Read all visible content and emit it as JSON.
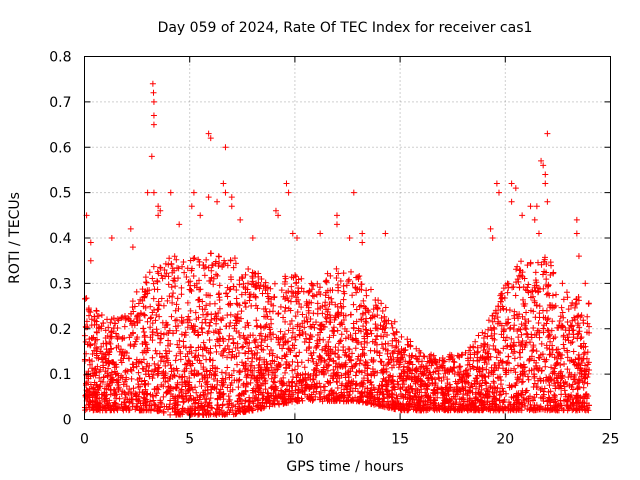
{
  "chart_data": {
    "type": "scatter",
    "title": "Day 059 of 2024, Rate Of TEC Index for receiver cas1",
    "xlabel": "GPS time / hours",
    "ylabel": "ROTI / TECUs",
    "xlim": [
      0,
      25
    ],
    "ylim": [
      0,
      0.8
    ],
    "x_ticks": [
      0,
      5,
      10,
      15,
      20,
      25
    ],
    "x_tick_labels": [
      "0",
      "5",
      "10",
      "15",
      "20",
      "25"
    ],
    "y_ticks": [
      0,
      0.1,
      0.2,
      0.3,
      0.4,
      0.5,
      0.6,
      0.7,
      0.8
    ],
    "y_tick_labels": [
      "0",
      "0.1",
      "0.2",
      "0.3",
      "0.4",
      "0.5",
      "0.6",
      "0.7",
      "0.8"
    ],
    "grid": true,
    "marker": "+",
    "color": "#ff0000",
    "envelope": {
      "x": [
        0,
        1,
        2,
        3,
        4,
        5,
        6,
        7,
        8,
        9,
        10,
        11,
        12,
        13,
        14,
        15,
        16,
        17,
        18,
        19,
        20,
        21,
        22,
        23,
        24
      ],
      "upper": [
        0.28,
        0.22,
        0.24,
        0.33,
        0.36,
        0.36,
        0.37,
        0.36,
        0.33,
        0.3,
        0.33,
        0.3,
        0.34,
        0.32,
        0.27,
        0.2,
        0.15,
        0.14,
        0.15,
        0.2,
        0.3,
        0.37,
        0.36,
        0.28,
        0.26
      ],
      "lower": [
        0.02,
        0.02,
        0.02,
        0.02,
        0.01,
        0.01,
        0.01,
        0.01,
        0.02,
        0.03,
        0.04,
        0.04,
        0.04,
        0.04,
        0.03,
        0.02,
        0.02,
        0.02,
        0.02,
        0.02,
        0.02,
        0.02,
        0.02,
        0.02,
        0.02
      ]
    },
    "outliers": [
      {
        "x": 0.1,
        "y": 0.45
      },
      {
        "x": 0.3,
        "y": 0.39
      },
      {
        "x": 0.3,
        "y": 0.35
      },
      {
        "x": 1.3,
        "y": 0.4
      },
      {
        "x": 2.2,
        "y": 0.42
      },
      {
        "x": 2.3,
        "y": 0.38
      },
      {
        "x": 3.0,
        "y": 0.5
      },
      {
        "x": 3.25,
        "y": 0.74
      },
      {
        "x": 3.28,
        "y": 0.72
      },
      {
        "x": 3.3,
        "y": 0.7
      },
      {
        "x": 3.3,
        "y": 0.67
      },
      {
        "x": 3.3,
        "y": 0.65
      },
      {
        "x": 3.2,
        "y": 0.58
      },
      {
        "x": 3.3,
        "y": 0.5
      },
      {
        "x": 3.5,
        "y": 0.47
      },
      {
        "x": 3.5,
        "y": 0.45
      },
      {
        "x": 3.6,
        "y": 0.46
      },
      {
        "x": 4.1,
        "y": 0.5
      },
      {
        "x": 4.5,
        "y": 0.43
      },
      {
        "x": 5.1,
        "y": 0.47
      },
      {
        "x": 5.2,
        "y": 0.5
      },
      {
        "x": 5.5,
        "y": 0.45
      },
      {
        "x": 5.9,
        "y": 0.63
      },
      {
        "x": 6.0,
        "y": 0.62
      },
      {
        "x": 5.9,
        "y": 0.49
      },
      {
        "x": 6.3,
        "y": 0.48
      },
      {
        "x": 6.7,
        "y": 0.6
      },
      {
        "x": 6.6,
        "y": 0.52
      },
      {
        "x": 6.7,
        "y": 0.5
      },
      {
        "x": 7.0,
        "y": 0.49
      },
      {
        "x": 7.0,
        "y": 0.47
      },
      {
        "x": 7.4,
        "y": 0.44
      },
      {
        "x": 8.0,
        "y": 0.4
      },
      {
        "x": 9.1,
        "y": 0.46
      },
      {
        "x": 9.2,
        "y": 0.45
      },
      {
        "x": 9.6,
        "y": 0.52
      },
      {
        "x": 9.7,
        "y": 0.5
      },
      {
        "x": 9.9,
        "y": 0.41
      },
      {
        "x": 10.1,
        "y": 0.4
      },
      {
        "x": 11.2,
        "y": 0.41
      },
      {
        "x": 12.0,
        "y": 0.45
      },
      {
        "x": 12.0,
        "y": 0.43
      },
      {
        "x": 12.6,
        "y": 0.4
      },
      {
        "x": 12.8,
        "y": 0.5
      },
      {
        "x": 13.2,
        "y": 0.41
      },
      {
        "x": 13.2,
        "y": 0.39
      },
      {
        "x": 14.3,
        "y": 0.41
      },
      {
        "x": 19.6,
        "y": 0.52
      },
      {
        "x": 19.7,
        "y": 0.5
      },
      {
        "x": 19.3,
        "y": 0.42
      },
      {
        "x": 19.4,
        "y": 0.4
      },
      {
        "x": 20.3,
        "y": 0.52
      },
      {
        "x": 20.5,
        "y": 0.51
      },
      {
        "x": 20.3,
        "y": 0.48
      },
      {
        "x": 20.8,
        "y": 0.45
      },
      {
        "x": 21.2,
        "y": 0.47
      },
      {
        "x": 21.5,
        "y": 0.47
      },
      {
        "x": 21.4,
        "y": 0.44
      },
      {
        "x": 21.6,
        "y": 0.41
      },
      {
        "x": 21.7,
        "y": 0.57
      },
      {
        "x": 21.8,
        "y": 0.56
      },
      {
        "x": 21.9,
        "y": 0.54
      },
      {
        "x": 21.9,
        "y": 0.52
      },
      {
        "x": 22.0,
        "y": 0.63
      },
      {
        "x": 22.0,
        "y": 0.48
      },
      {
        "x": 23.4,
        "y": 0.44
      },
      {
        "x": 23.4,
        "y": 0.41
      },
      {
        "x": 23.5,
        "y": 0.36
      },
      {
        "x": 23.8,
        "y": 0.3
      }
    ],
    "seed": 59
  }
}
